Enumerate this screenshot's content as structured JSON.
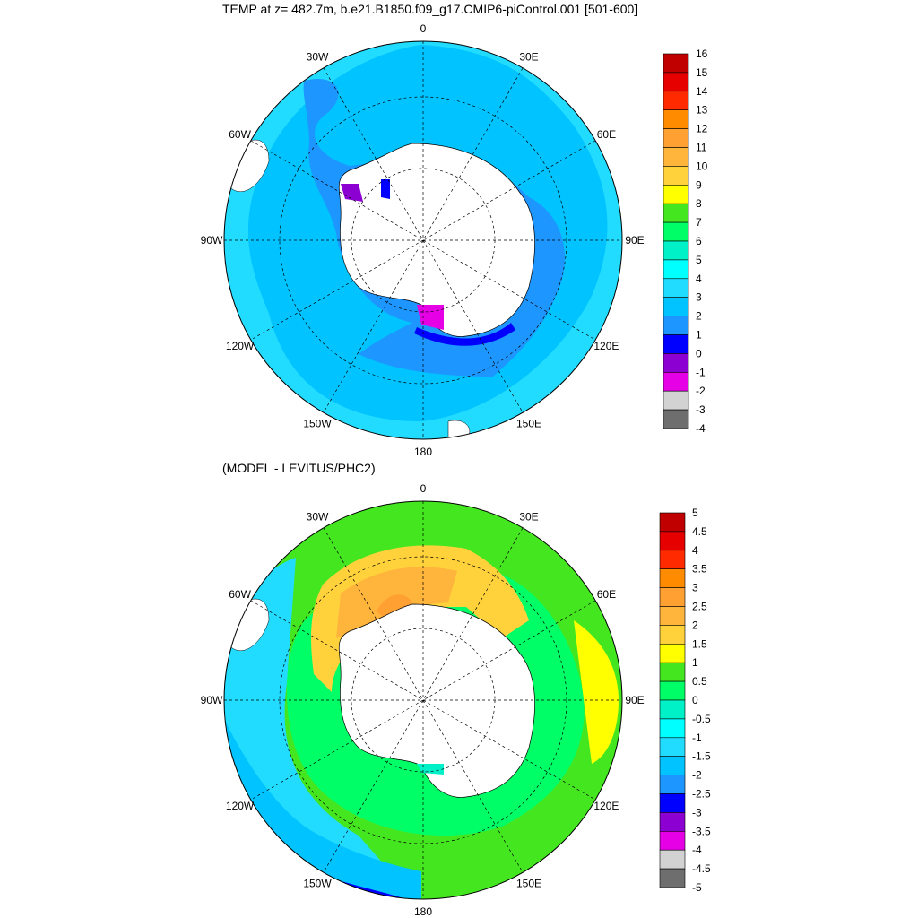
{
  "top_map": {
    "title": "TEMP at z= 482.7m, b.e21.B1850.f09_g17.CMIP6-piControl.001 [501-600]",
    "longitude_labels": [
      "0",
      "30E",
      "60E",
      "90E",
      "120E",
      "150E",
      "180",
      "150W",
      "120W",
      "90W",
      "60W",
      "30W"
    ],
    "colorbar": {
      "labels": [
        "16",
        "15",
        "14",
        "13",
        "12",
        "11",
        "10",
        "9",
        "8",
        "7",
        "6",
        "5",
        "4",
        "3",
        "2",
        "1",
        "0",
        "-1",
        "-2",
        "-3",
        "-4"
      ],
      "colors": [
        "#c00000",
        "#e60000",
        "#ff2a00",
        "#ff8c00",
        "#ffa033",
        "#ffb43c",
        "#ffd23c",
        "#ffff00",
        "#44e620",
        "#00ff66",
        "#00f0c8",
        "#00ffff",
        "#22dcff",
        "#00c3ff",
        "#1e96ff",
        "#0000ff",
        "#8c00d2",
        "#e600e6",
        "#d2d2d2",
        "#6e6e6e"
      ]
    }
  },
  "bottom_map": {
    "title": "(MODEL - LEVITUS/PHC2)",
    "longitude_labels": [
      "0",
      "30E",
      "60E",
      "90E",
      "120E",
      "150E",
      "180",
      "150W",
      "120W",
      "90W",
      "60W",
      "30W"
    ],
    "colorbar": {
      "labels": [
        "5",
        "4.5",
        "4",
        "3.5",
        "3",
        "2.5",
        "2",
        "1.5",
        "1",
        "0.5",
        "0",
        "-0.5",
        "-1",
        "-1.5",
        "-2",
        "-2.5",
        "-3",
        "-3.5",
        "-4",
        "-4.5",
        "-5"
      ],
      "colors": [
        "#c00000",
        "#e60000",
        "#ff2a00",
        "#ff8c00",
        "#ffa033",
        "#ffb43c",
        "#ffd23c",
        "#ffff00",
        "#44e620",
        "#00ff66",
        "#00f0c8",
        "#00ffff",
        "#22dcff",
        "#00c3ff",
        "#1e96ff",
        "#0000ff",
        "#8c00d2",
        "#e600e6",
        "#d2d2d2",
        "#6e6e6e"
      ]
    }
  }
}
